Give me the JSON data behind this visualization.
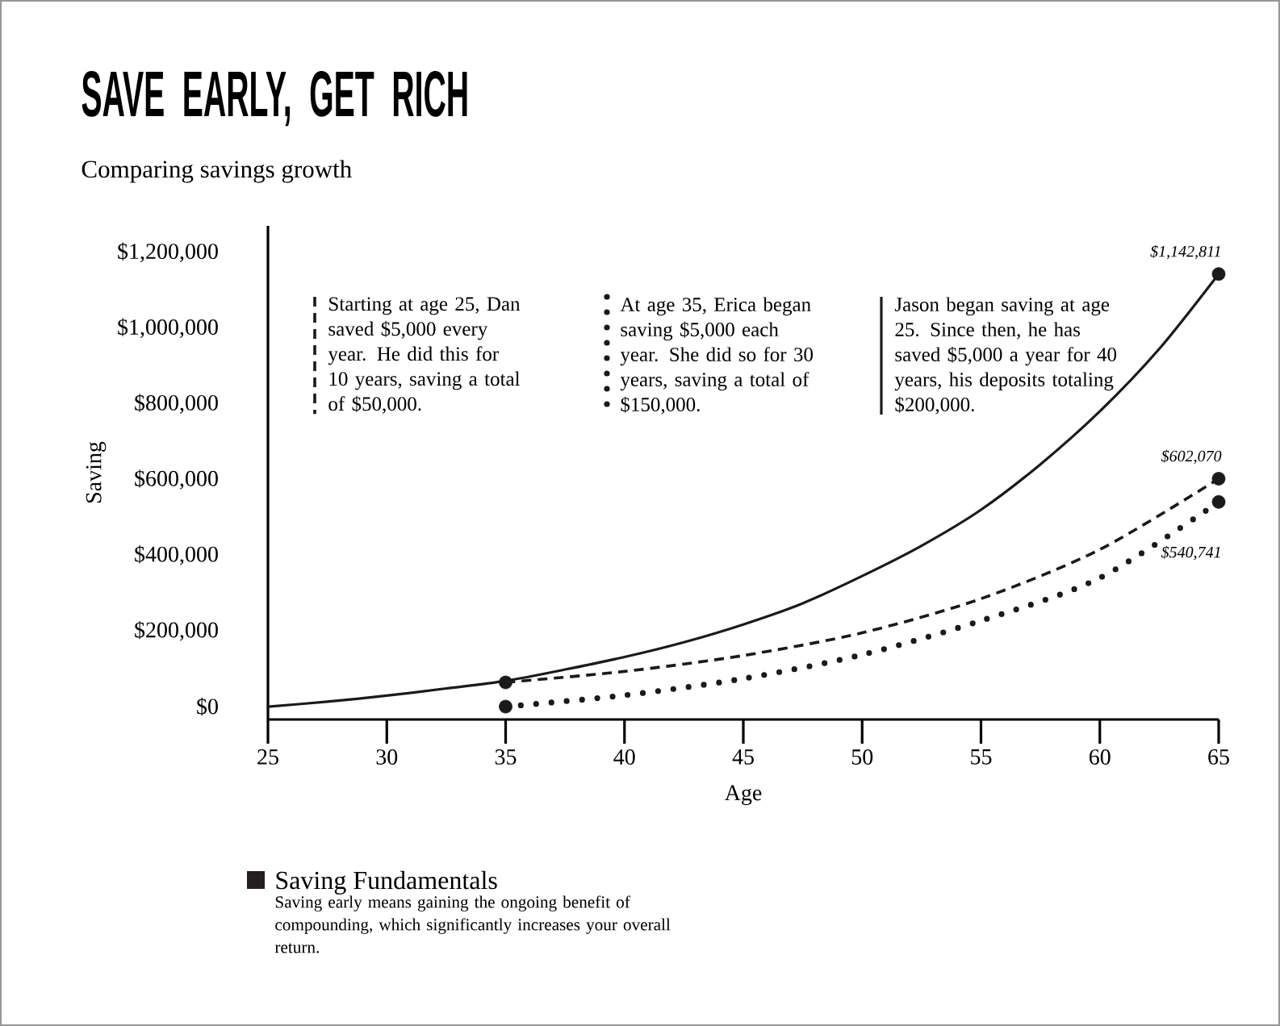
{
  "chart_data": {
    "type": "line",
    "title": "SAVE EARLY, GET RICH",
    "subtitle": "Comparing savings growth",
    "xlabel": "Age",
    "ylabel": "Saving",
    "xlim": [
      25,
      65
    ],
    "xticks": [
      25,
      30,
      35,
      40,
      45,
      50,
      55,
      60,
      65
    ],
    "ylim": [
      -34000,
      1270000
    ],
    "yticks": [
      {
        "value": 0,
        "label": "$0"
      },
      {
        "value": 200000,
        "label": "$200,000"
      },
      {
        "value": 400000,
        "label": "$400,000"
      },
      {
        "value": 600000,
        "label": "$600,000"
      },
      {
        "value": 800000,
        "label": "$800,000"
      },
      {
        "value": 1000000,
        "label": "$1,000,000"
      },
      {
        "value": 1200000,
        "label": "$1,200,000"
      }
    ],
    "series": [
      {
        "color": "#1a1a1a",
        "line_style": "dashed",
        "x": [
          35,
          40,
          45,
          50,
          55,
          60,
          65
        ],
        "values": [
          64000,
          93000,
          135000,
          195000,
          285000,
          415000,
          602070
        ],
        "value_labels": [
          null,
          null,
          null,
          null,
          null,
          null,
          "$602,070"
        ]
      },
      {
        "color": "#1a1a1a",
        "line_style": "dotted",
        "x": [
          35,
          40,
          45,
          50,
          55,
          60,
          65
        ],
        "values": [
          0,
          30000,
          74000,
          137000,
          227000,
          340000,
          540741
        ],
        "value_labels": [
          null,
          null,
          null,
          null,
          null,
          null,
          "$540,741"
        ]
      },
      {
        "color": "#1a1a1a",
        "line_style": "solid",
        "x": [
          25,
          27.5,
          30,
          32.5,
          35,
          37.5,
          40,
          42.5,
          45,
          47.5,
          50,
          52.5,
          55,
          57.5,
          60,
          62.5,
          65
        ],
        "values": [
          0,
          13000,
          29000,
          48000,
          68000,
          98000,
          131000,
          170000,
          217000,
          273000,
          345000,
          425000,
          520000,
          640000,
          780000,
          945000,
          1142811
        ],
        "value_labels": [
          null,
          null,
          null,
          null,
          null,
          null,
          null,
          null,
          null,
          null,
          null,
          null,
          null,
          null,
          null,
          null,
          "$1,142,811"
        ]
      }
    ],
    "annotations": [
      "Starting at age 25, Dan saved $5,000 every year.  He did this for 10 years, saving a total of $50,000.",
      "At age 35, Erica began saving $5,000 each year. She did so for 30 years, saving a total of $150,000.",
      "Jason began saving at age 25. Since then, he has saved $5,000 a year for 40 years, his deposits totaling $200,000.",
      "Saving Fundamentals",
      "Saving early means gaining the ongoing benefit of compounding, which significantly increases your overall return."
    ]
  }
}
